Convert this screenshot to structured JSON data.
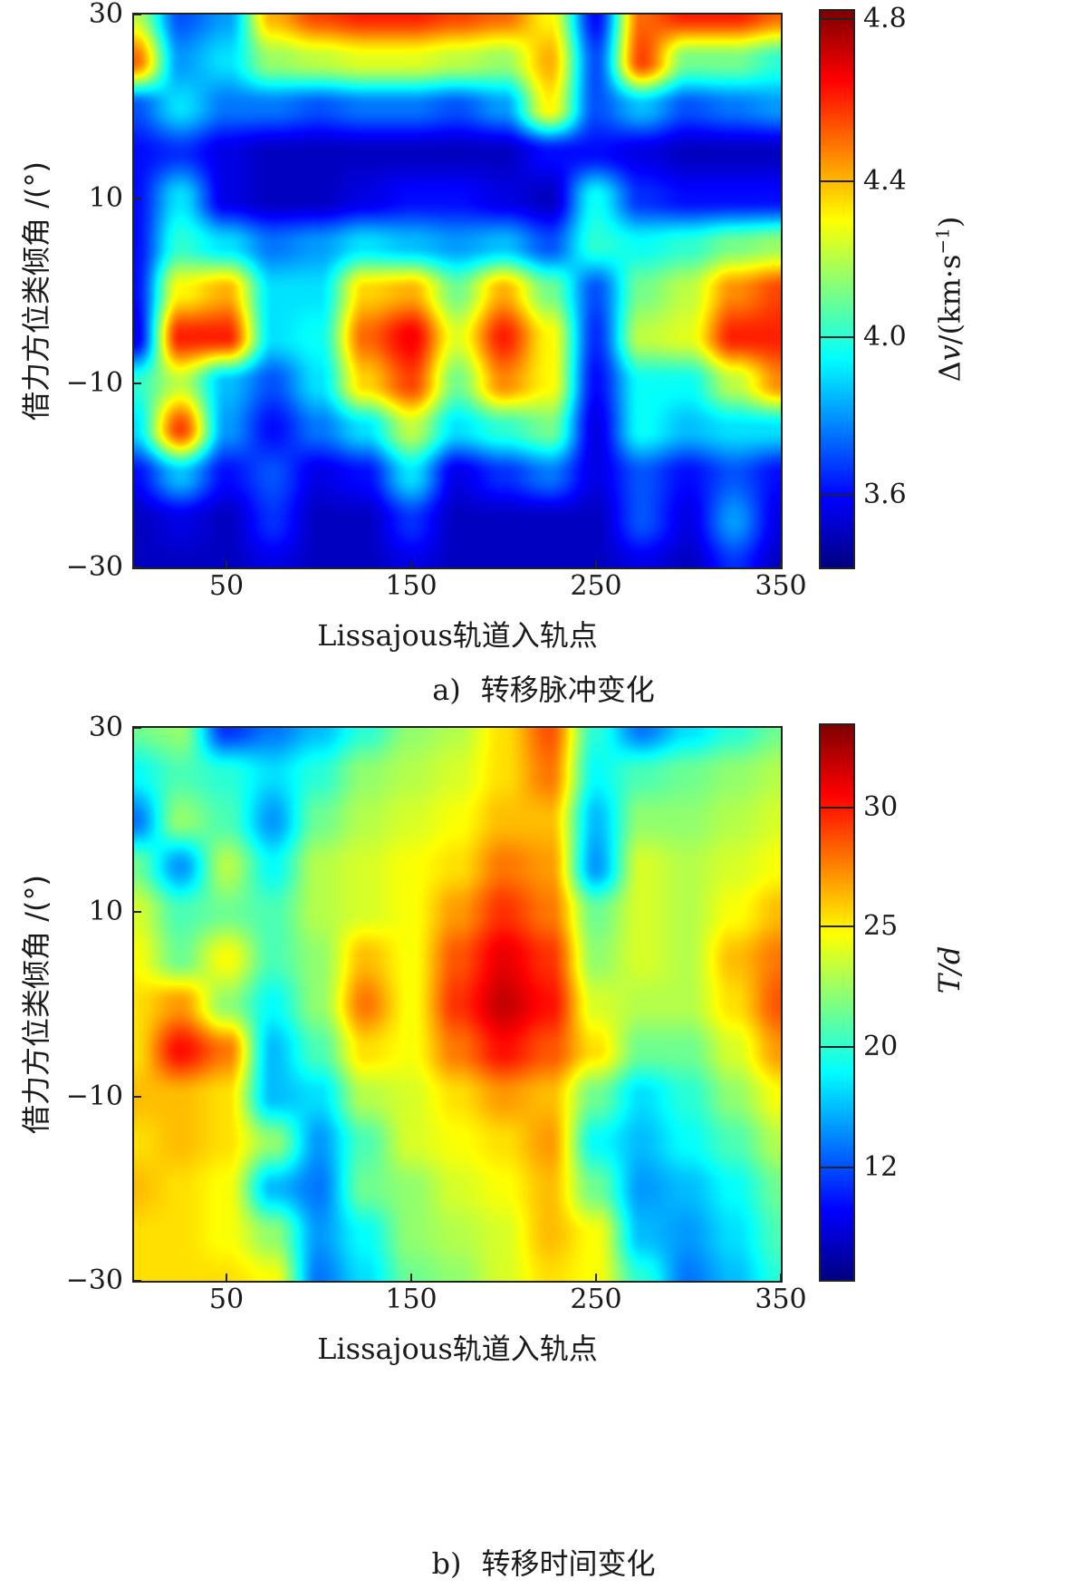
{
  "chart_data": [
    {
      "type": "heatmap",
      "panel": "a)",
      "caption": "转移脉冲变化",
      "xlabel": "Lissajous轨道入轨点",
      "ylabel": "借力方位类倾角 /(°)",
      "colorbar_title": "Δv/(km·s⁻¹)",
      "x_ticks": [
        "50",
        "150",
        "250",
        "350"
      ],
      "x_tick_values": [
        50,
        150,
        250,
        350
      ],
      "xlim": [
        0,
        350
      ],
      "y_ticks": [
        "30",
        "10",
        "−10",
        "−30"
      ],
      "y_tick_values": [
        30,
        10,
        -10,
        -30
      ],
      "ylim": [
        -30,
        30
      ],
      "colormap": "jet",
      "colorbar_range": [
        3.41,
        4.82
      ],
      "colorbar_ticks": [
        "4.8",
        "4.4",
        "4.0",
        "3.6"
      ],
      "colorbar_tick_fractions": [
        0.986,
        0.693,
        0.413,
        0.13
      ],
      "grid": false,
      "x": [
        0,
        25,
        50,
        75,
        100,
        125,
        150,
        175,
        200,
        225,
        250,
        275,
        300,
        325,
        350
      ],
      "y": [
        30,
        25,
        20,
        15,
        10,
        5,
        0,
        -5,
        -10,
        -15,
        -20,
        -25,
        -30
      ],
      "z": [
        [
          4.2,
          3.7,
          3.8,
          4.4,
          4.55,
          4.6,
          4.6,
          4.55,
          4.5,
          4.3,
          3.6,
          4.5,
          4.6,
          4.6,
          4.5
        ],
        [
          4.5,
          3.8,
          3.9,
          4.15,
          4.2,
          4.25,
          4.25,
          4.2,
          4.15,
          4.4,
          3.7,
          4.55,
          4.1,
          4.1,
          4.0
        ],
        [
          3.7,
          3.9,
          3.75,
          3.75,
          3.7,
          3.75,
          3.75,
          3.7,
          3.8,
          4.3,
          3.7,
          3.85,
          3.7,
          3.75,
          3.8
        ],
        [
          3.6,
          3.65,
          3.55,
          3.5,
          3.5,
          3.5,
          3.5,
          3.5,
          3.5,
          3.6,
          3.6,
          3.55,
          3.5,
          3.5,
          3.5
        ],
        [
          3.6,
          3.9,
          3.55,
          3.5,
          3.5,
          3.55,
          3.6,
          3.6,
          3.55,
          3.5,
          3.95,
          3.65,
          3.6,
          3.6,
          3.6
        ],
        [
          3.6,
          4.0,
          3.9,
          3.75,
          3.8,
          3.9,
          3.85,
          3.8,
          3.85,
          3.7,
          4.0,
          3.95,
          4.0,
          4.1,
          4.15
        ],
        [
          3.6,
          4.3,
          4.4,
          3.9,
          3.9,
          4.35,
          4.4,
          4.1,
          4.4,
          4.1,
          3.7,
          4.1,
          4.2,
          4.45,
          4.55
        ],
        [
          3.55,
          4.6,
          4.6,
          3.9,
          3.95,
          4.5,
          4.65,
          4.25,
          4.6,
          4.3,
          3.65,
          4.2,
          4.25,
          4.6,
          4.6
        ],
        [
          4.0,
          4.2,
          3.85,
          3.7,
          3.9,
          4.35,
          4.55,
          4.1,
          4.45,
          4.3,
          3.6,
          3.95,
          3.95,
          4.2,
          4.45
        ],
        [
          3.9,
          4.55,
          3.8,
          3.6,
          3.75,
          3.9,
          4.2,
          3.9,
          4.0,
          4.1,
          3.55,
          3.95,
          3.85,
          3.9,
          3.9
        ],
        [
          3.6,
          3.85,
          3.6,
          3.7,
          3.55,
          3.6,
          3.9,
          3.55,
          3.65,
          3.75,
          3.55,
          3.7,
          3.6,
          3.7,
          3.6
        ],
        [
          3.5,
          3.55,
          3.5,
          3.65,
          3.5,
          3.5,
          3.65,
          3.5,
          3.5,
          3.5,
          3.5,
          3.7,
          3.55,
          3.8,
          3.55
        ],
        [
          3.5,
          3.5,
          3.5,
          3.55,
          3.5,
          3.5,
          3.55,
          3.5,
          3.5,
          3.5,
          3.5,
          3.55,
          3.5,
          3.65,
          3.5
        ]
      ]
    },
    {
      "type": "heatmap",
      "panel": "b)",
      "caption": "转移时间变化",
      "xlabel": "Lissajous轨道入轨点",
      "ylabel": "借力方位类倾角 /(°)",
      "colorbar_title": "T/d",
      "x_ticks": [
        "50",
        "150",
        "250",
        "350"
      ],
      "x_tick_values": [
        50,
        150,
        250,
        350
      ],
      "xlim": [
        0,
        350
      ],
      "y_ticks": [
        "30",
        "10",
        "−10",
        "−30"
      ],
      "y_tick_values": [
        30,
        10,
        -10,
        -30
      ],
      "ylim": [
        -30,
        30
      ],
      "colormap": "jet",
      "colorbar_range": [
        5,
        34
      ],
      "colorbar_ticks": [
        "30",
        "25",
        "20",
        "12"
      ],
      "colorbar_tick_fractions": [
        0.852,
        0.638,
        0.42,
        0.202
      ],
      "grid": false,
      "x": [
        0,
        25,
        50,
        75,
        100,
        125,
        150,
        175,
        200,
        225,
        250,
        275,
        300,
        325,
        350
      ],
      "y": [
        30,
        25,
        20,
        15,
        10,
        5,
        0,
        -5,
        -10,
        -15,
        -20,
        -25,
        -30
      ],
      "z": [
        [
          19,
          20,
          10,
          12,
          14,
          17,
          20,
          21,
          24,
          28,
          17,
          12,
          15,
          17,
          19
        ],
        [
          16,
          18,
          17,
          15,
          17,
          20,
          21,
          22,
          24,
          27,
          16,
          18,
          19,
          20,
          21
        ],
        [
          12,
          20,
          18,
          13,
          19,
          21,
          22,
          23,
          25,
          25,
          14,
          20,
          20,
          21,
          22
        ],
        [
          19,
          13,
          21,
          16,
          21,
          22,
          23,
          24,
          27,
          26,
          13,
          22,
          21,
          22,
          23
        ],
        [
          22,
          18,
          19,
          18,
          21,
          22,
          23,
          26,
          29,
          27,
          19,
          22,
          21,
          23,
          25
        ],
        [
          23,
          19,
          23,
          18,
          20,
          25,
          23,
          28,
          31,
          29,
          20,
          22,
          21,
          25,
          27
        ],
        [
          24,
          26,
          20,
          16,
          20,
          27,
          23,
          29,
          32,
          30,
          22,
          21,
          21,
          24,
          28
        ],
        [
          24,
          30,
          27,
          14,
          18,
          24,
          23,
          27,
          30,
          28,
          24,
          19,
          19,
          22,
          26
        ],
        [
          25,
          25,
          24,
          14,
          15,
          21,
          22,
          24,
          26,
          25,
          19,
          15,
          17,
          20,
          23
        ],
        [
          24,
          25,
          24,
          20,
          13,
          18,
          22,
          23,
          24,
          26,
          16,
          14,
          16,
          18,
          21
        ],
        [
          25,
          24,
          23,
          14,
          12,
          19,
          20,
          22,
          23,
          25,
          19,
          13,
          14,
          16,
          19
        ],
        [
          24,
          24,
          23,
          20,
          13,
          16,
          20,
          21,
          22,
          25,
          23,
          14,
          13,
          15,
          18
        ],
        [
          24,
          24,
          24,
          23,
          12,
          15,
          19,
          20,
          22,
          24,
          23,
          17,
          12,
          14,
          17
        ]
      ]
    }
  ]
}
